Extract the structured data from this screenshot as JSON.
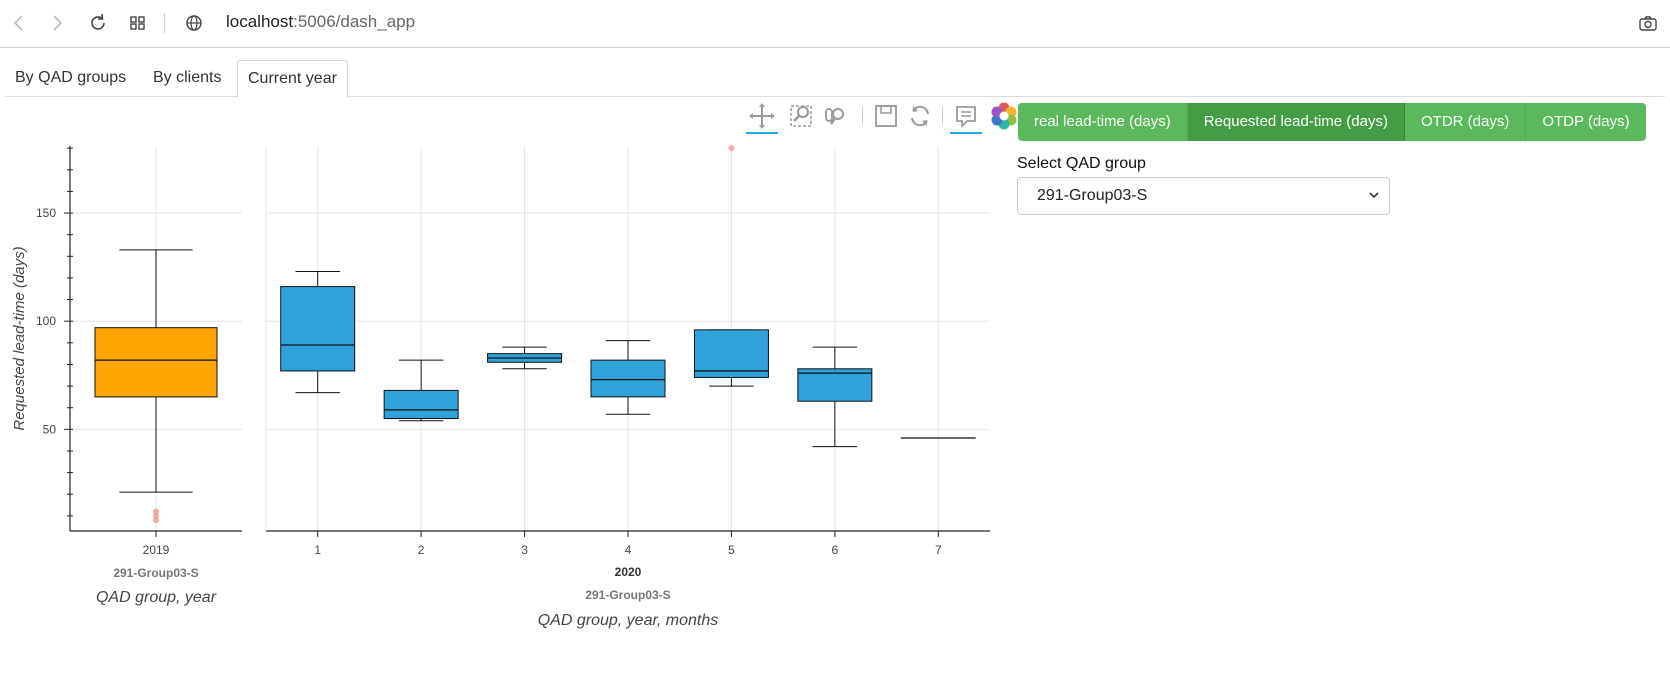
{
  "browser": {
    "url_host": "localhost",
    "url_rest": ":5006/dash_app"
  },
  "tabs": [
    {
      "label": "By QAD groups"
    },
    {
      "label": "By clients"
    },
    {
      "label": "Current year"
    }
  ],
  "metric_buttons": [
    {
      "label": "real lead-time (days)"
    },
    {
      "label": "Requested lead-time (days)"
    },
    {
      "label": "OTDR (days)"
    },
    {
      "label": "OTDP (days)"
    }
  ],
  "select": {
    "label": "Select QAD group",
    "value": "291-Group03-S"
  },
  "colors": {
    "year_box": "#FFA500",
    "month_box": "#30A2DA",
    "outlier": "#f29b9b",
    "button": "#5cb85c",
    "button_active": "#449d44"
  },
  "chart_data": [
    {
      "type": "box",
      "ylabel": "Requested lead-time (days)",
      "xlabel": "QAD group, year",
      "group_label": "291-Group03-S",
      "ylim": [
        3,
        181
      ],
      "yticks": [
        50,
        100,
        150
      ],
      "categories": [
        "2019"
      ],
      "boxes": [
        {
          "x": "2019",
          "whisker_low": 21,
          "q1": 65,
          "median": 82,
          "q3": 97,
          "whisker_high": 133,
          "outliers": [
            8,
            10,
            12
          ]
        }
      ]
    },
    {
      "type": "box",
      "xlabel": "QAD group, year, months",
      "year_label": "2020",
      "group_label": "291-Group03-S",
      "ylim": [
        3,
        181
      ],
      "categories": [
        "1",
        "2",
        "3",
        "4",
        "5",
        "6",
        "7"
      ],
      "boxes": [
        {
          "x": "1",
          "whisker_low": 67,
          "q1": 77,
          "median": 89,
          "q3": 116,
          "whisker_high": 123,
          "outliers": []
        },
        {
          "x": "2",
          "whisker_low": 54,
          "q1": 55,
          "median": 59,
          "q3": 68,
          "whisker_high": 82,
          "outliers": []
        },
        {
          "x": "3",
          "whisker_low": 78,
          "q1": 81,
          "median": 83,
          "q3": 85,
          "whisker_high": 88,
          "outliers": []
        },
        {
          "x": "4",
          "whisker_low": 57,
          "q1": 65,
          "median": 73,
          "q3": 82,
          "whisker_high": 91,
          "outliers": []
        },
        {
          "x": "5",
          "whisker_low": 70,
          "q1": 74,
          "median": 77,
          "q3": 96,
          "whisker_high": 96,
          "outliers": [
            180
          ]
        },
        {
          "x": "6",
          "whisker_low": 42,
          "q1": 63,
          "median": 76,
          "q3": 78,
          "whisker_high": 88,
          "outliers": []
        },
        {
          "x": "7",
          "whisker_low": 46,
          "q1": 46,
          "median": 46,
          "q3": 46,
          "whisker_high": 46,
          "outliers": []
        }
      ]
    }
  ]
}
